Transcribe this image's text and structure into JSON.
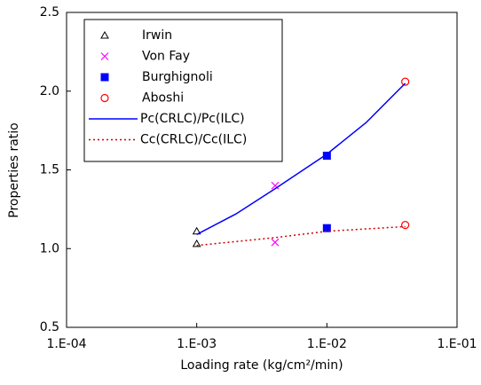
{
  "chart_data": {
    "type": "scatter",
    "x_label": "Loading rate (kg/cm²/min)",
    "y_label": "Properties ratio",
    "log_x": true,
    "xlim": [
      0.0001,
      0.1
    ],
    "xticks": [
      {
        "value": 0.0001,
        "label": "1.E-04"
      },
      {
        "value": 0.001,
        "label": "1.E-03"
      },
      {
        "value": 0.01,
        "label": "1.E-02"
      },
      {
        "value": 0.1,
        "label": "1.E-01"
      }
    ],
    "ylim": [
      0.5,
      2.5
    ],
    "yticks": [
      0.5,
      {
        "value": 1.0,
        "label": "1.0"
      },
      1.5,
      {
        "value": 2.0,
        "label": "2.0"
      },
      2.5
    ],
    "legend": "upper-left",
    "series": [
      {
        "name": "Irwin",
        "color": "#000000",
        "marker": "triangle",
        "x": [
          0.001,
          0.001
        ],
        "values": [
          1.11,
          1.03
        ]
      },
      {
        "name": "Von Fay",
        "color": "#ff00ff",
        "marker": "x",
        "x": [
          0.004,
          0.004
        ],
        "values": [
          1.4,
          1.04
        ]
      },
      {
        "name": "Burghignoli",
        "color": "#0000ff",
        "marker": "square",
        "x": [
          0.01,
          0.01
        ],
        "values": [
          1.59,
          1.13
        ]
      },
      {
        "name": "Aboshi",
        "color": "#ff0000",
        "marker": "circle",
        "x": [
          0.04,
          0.04
        ],
        "values": [
          2.06,
          1.15
        ]
      },
      {
        "name": "Pc(CRLC)/Pc(ILC)",
        "color": "#0000ff",
        "line": "solid",
        "x": [
          0.001,
          0.002,
          0.004,
          0.01,
          0.02,
          0.04
        ],
        "values": [
          1.09,
          1.22,
          1.38,
          1.6,
          1.8,
          2.05
        ]
      },
      {
        "name": "Cc(CRLC)/Cc(ILC)",
        "color": "#cc0000",
        "line": "dotted",
        "x": [
          0.001,
          0.004,
          0.01,
          0.04
        ],
        "values": [
          1.02,
          1.07,
          1.11,
          1.14
        ]
      }
    ]
  }
}
